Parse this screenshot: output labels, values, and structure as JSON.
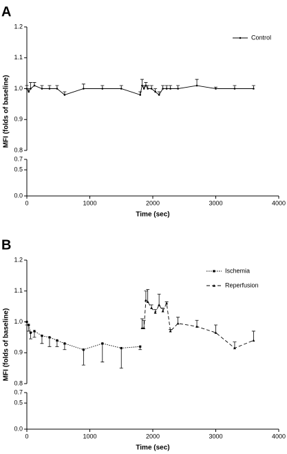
{
  "chart_data": [
    {
      "type": "line",
      "panel_label": "A",
      "ylabel": "MFI (folds of baseline)",
      "xlabel": "Time (sec)",
      "xlim": [
        0,
        4000
      ],
      "xticks": [
        0,
        1000,
        2000,
        3000,
        4000
      ],
      "ylim": [
        0.8,
        1.2
      ],
      "yticks": [
        0.8,
        0.9,
        {
          "value": 1,
          "label": "1.0"
        },
        1.1,
        1.2
      ],
      "ylim_lower": [
        0,
        0.7
      ],
      "yticks_lower": [
        {
          "value": 0,
          "label": "0.0"
        },
        0.5,
        0.7
      ],
      "legend": "upper right",
      "series": [
        {
          "name": "Control",
          "color": "#000000",
          "dash": "solid",
          "marker": "dot",
          "error_bar": "up",
          "x": [
            0,
            30,
            60,
            120,
            240,
            360,
            480,
            600,
            900,
            1200,
            1500,
            1800,
            1830,
            1860,
            1890,
            1920,
            1980,
            2040,
            2100,
            2160,
            2220,
            2280,
            2400,
            2700,
            3000,
            3300,
            3600
          ],
          "values": [
            1.0,
            0.99,
            1.0,
            1.01,
            1.0,
            1.0,
            1.0,
            0.98,
            1.0,
            1.0,
            1.0,
            0.98,
            1.01,
            1.0,
            1.01,
            1.0,
            1.0,
            0.99,
            0.98,
            1.0,
            1.0,
            1.0,
            1.0,
            1.01,
            1.0,
            1.0,
            1.0
          ],
          "errors": [
            0.01,
            0.01,
            0.02,
            0.01,
            0.01,
            0.01,
            0.01,
            0.01,
            0.015,
            0.01,
            0.01,
            0.01,
            0.02,
            0.01,
            0.01,
            0.01,
            0.01,
            0.01,
            0.01,
            0.01,
            0.01,
            0.01,
            0.01,
            0.02,
            0.005,
            0.01,
            0.01
          ]
        }
      ]
    },
    {
      "type": "line",
      "panel_label": "B",
      "ylabel": "MFI (folds of baseline)",
      "xlabel": "Time (sec)",
      "xlim": [
        0,
        4000
      ],
      "xticks": [
        0,
        1000,
        2000,
        3000,
        4000
      ],
      "ylim": [
        0.8,
        1.2
      ],
      "yticks": [
        0.8,
        0.9,
        {
          "value": 1,
          "label": "1.0"
        },
        1.1,
        1.2
      ],
      "ylim_lower": [
        0,
        0.7
      ],
      "yticks_lower": [
        {
          "value": 0,
          "label": "0.0"
        },
        0.5,
        0.7
      ],
      "legend": "upper right",
      "series": [
        {
          "name": "Ischemia",
          "color": "#000000",
          "dash": "dotted",
          "marker": "square",
          "error_bar": "down",
          "x": [
            0,
            30,
            60,
            120,
            240,
            360,
            480,
            600,
            900,
            1200,
            1500,
            1800
          ],
          "values": [
            1.0,
            0.99,
            0.965,
            0.97,
            0.955,
            0.95,
            0.94,
            0.93,
            0.91,
            0.93,
            0.915,
            0.92
          ],
          "errors": [
            0.01,
            0.02,
            0.02,
            0.02,
            0.025,
            0.03,
            0.02,
            0.02,
            0.05,
            0.06,
            0.065,
            0.01
          ]
        },
        {
          "name": "Reperfusion",
          "color": "#000000",
          "dash": "dashed",
          "marker": "triangle",
          "error_bar": "up",
          "x": [
            1830,
            1860,
            1890,
            1920,
            1980,
            2040,
            2100,
            2160,
            2220,
            2280,
            2400,
            2700,
            3000,
            3300,
            3600
          ],
          "values": [
            0.98,
            0.98,
            1.07,
            1.065,
            1.045,
            1.03,
            1.055,
            1.035,
            1.06,
            0.97,
            0.995,
            0.985,
            0.965,
            0.915,
            0.94
          ],
          "errors": [
            0.03,
            0.025,
            0.03,
            0.04,
            0.01,
            0.01,
            0.035,
            0.01,
            0.005,
            0.005,
            0.02,
            0.02,
            0.025,
            0.02,
            0.03
          ]
        }
      ]
    }
  ]
}
